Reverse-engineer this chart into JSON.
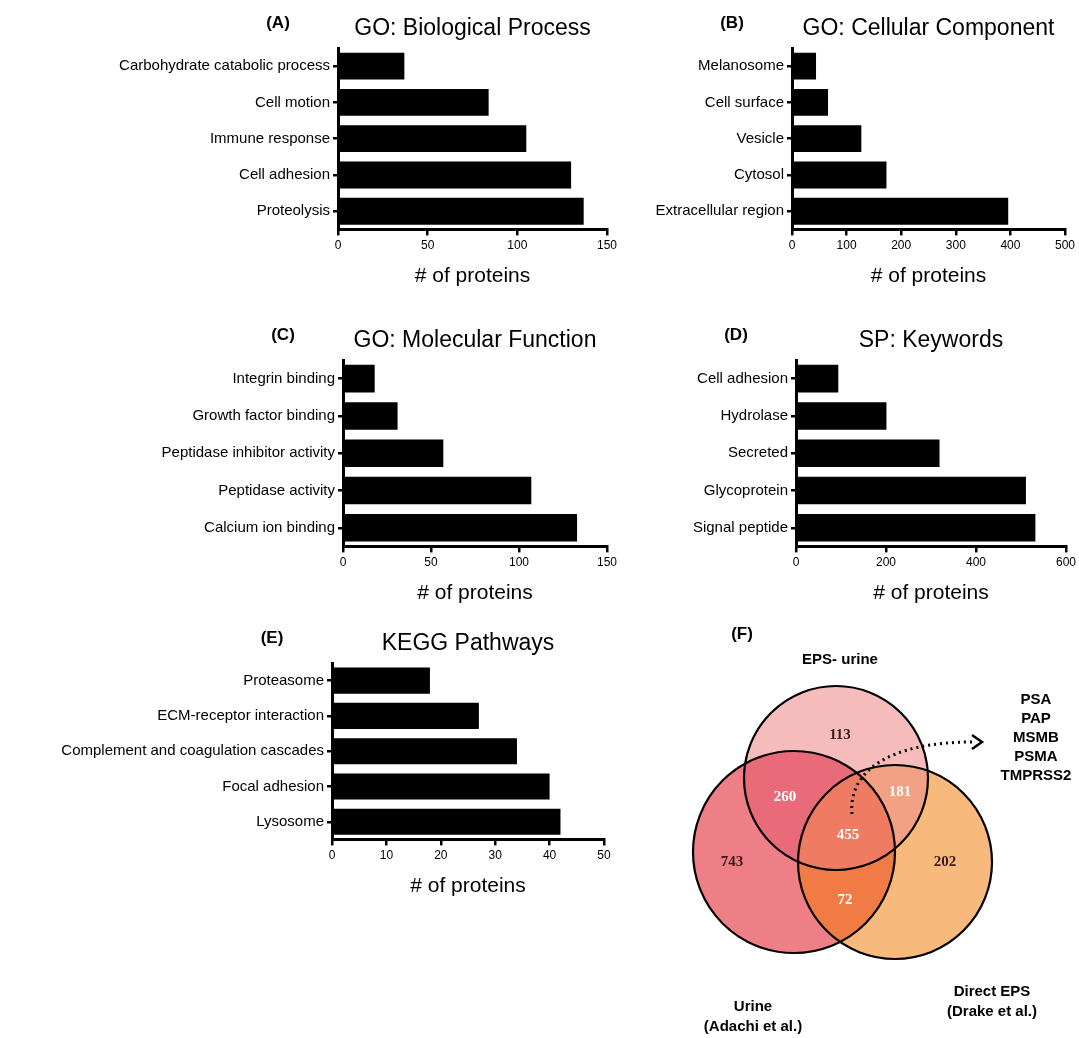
{
  "chart_data": [
    {
      "type": "bar",
      "orientation": "horizontal",
      "title": "GO: Biological Process",
      "xlabel": "# of proteins",
      "annotations": [
        "(A)"
      ],
      "categories": [
        "Carbohydrate catabolic process",
        "Cell motion",
        "Immune response",
        "Cell adhesion",
        "Proteolysis"
      ],
      "values": [
        37,
        84,
        105,
        130,
        137
      ],
      "color": "#000000",
      "xlim": [
        0,
        150
      ],
      "xticks": [
        0,
        50,
        100,
        150
      ],
      "grid": false
    },
    {
      "type": "bar",
      "orientation": "horizontal",
      "title": "GO: Cellular Component",
      "xlabel": "# of proteins",
      "annotations": [
        "(B)"
      ],
      "categories": [
        "Melanosome",
        "Cell surface",
        "Vesicle",
        "Cytosol",
        "Extracellular region"
      ],
      "values": [
        44,
        66,
        127,
        173,
        396
      ],
      "color": "#000000",
      "xlim": [
        0,
        500
      ],
      "xticks": [
        0,
        100,
        200,
        300,
        400,
        500
      ],
      "grid": false
    },
    {
      "type": "bar",
      "orientation": "horizontal",
      "title": "GO: Molecular Function",
      "xlabel": "# of proteins",
      "annotations": [
        "(C)"
      ],
      "categories": [
        "Integrin binding",
        "Growth factor binding",
        "Peptidase inhibitor activity",
        "Peptidase activity",
        "Calcium ion binding"
      ],
      "values": [
        18,
        31,
        57,
        107,
        133
      ],
      "color": "#000000",
      "xlim": [
        0,
        150
      ],
      "xticks": [
        0,
        50,
        100,
        150
      ],
      "grid": false
    },
    {
      "type": "bar",
      "orientation": "horizontal",
      "title": "SP: Keywords",
      "xlabel": "# of proteins",
      "annotations": [
        "(D)"
      ],
      "categories": [
        "Cell adhesion",
        "Hydrolase",
        "Secreted",
        "Glycoprotein",
        "Signal peptide"
      ],
      "values": [
        94,
        201,
        319,
        511,
        532
      ],
      "color": "#000000",
      "xlim": [
        0,
        600
      ],
      "xticks": [
        0,
        200,
        400,
        600
      ],
      "grid": false
    },
    {
      "type": "bar",
      "orientation": "horizontal",
      "title": "KEGG Pathways",
      "xlabel": "# of proteins",
      "annotations": [
        "(E)"
      ],
      "categories": [
        "Proteasome",
        "ECM-receptor interaction",
        "Complement and coagulation cascades",
        "Focal adhesion",
        "Lysosome"
      ],
      "values": [
        18,
        27,
        34,
        40,
        42
      ],
      "color": "#000000",
      "xlim": [
        0,
        50
      ],
      "xticks": [
        0,
        10,
        20,
        30,
        40,
        50
      ],
      "grid": false
    },
    {
      "type": "other",
      "annotations": [
        "(F)",
        "EPS- urine",
        "Urine\n(Adachi et al.)",
        "Direct EPS\n(Drake et al.)",
        "PSA\nPAP\nMSMB\nPSMA\nTMPRSS2",
        "743",
        "113",
        "202",
        "260",
        "181",
        "72",
        "455"
      ],
      "colors": [
        "#ef7f86",
        "#f6bcbc",
        "#f8b97c",
        "#e96a78",
        "#f2a184",
        "#f07b45",
        "#ef7c62"
      ]
    }
  ]
}
